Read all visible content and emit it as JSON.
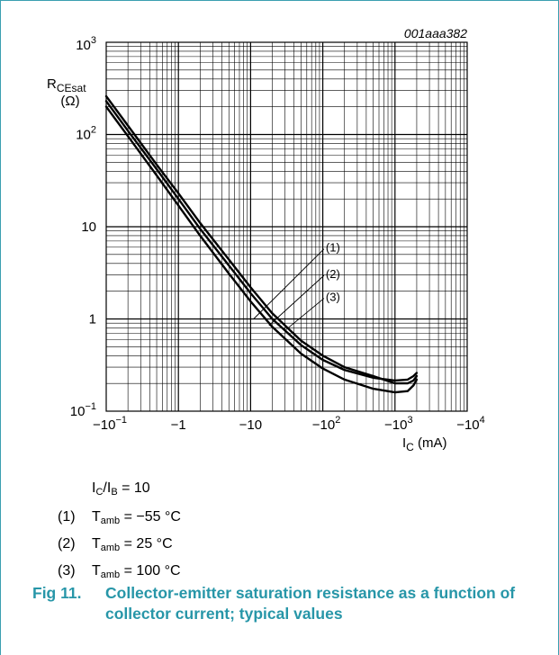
{
  "chart_data": {
    "type": "line",
    "doc_id": "001aaa382",
    "x_scale": "log",
    "y_scale": "log",
    "xlim": [
      0.1,
      10000
    ],
    "ylim": [
      0.1,
      1000
    ],
    "x_ticks": [
      {
        "value": 0.1,
        "base": "−10",
        "exp": "−1"
      },
      {
        "value": 1,
        "base": "−1",
        "exp": ""
      },
      {
        "value": 10,
        "base": "−10",
        "exp": ""
      },
      {
        "value": 100,
        "base": "−10",
        "exp": "2"
      },
      {
        "value": 1000,
        "base": "−10",
        "exp": "3"
      },
      {
        "value": 10000,
        "base": "−10",
        "exp": "4"
      }
    ],
    "y_ticks": [
      {
        "value": 0.1,
        "base": "10",
        "exp": "−1"
      },
      {
        "value": 1,
        "base": "1",
        "exp": ""
      },
      {
        "value": 10,
        "base": "10",
        "exp": ""
      },
      {
        "value": 100,
        "base": "10",
        "exp": "2"
      },
      {
        "value": 1000,
        "base": "10",
        "exp": "3"
      }
    ],
    "xlabel": {
      "main": "I",
      "sub": "C",
      "unit": " (mA)"
    },
    "ylabel": {
      "main": "R",
      "sub": "CEsat",
      "unit": "(Ω)"
    },
    "grid": true,
    "series": [
      {
        "name": "(1)",
        "x": [
          0.1,
          0.2,
          0.5,
          1,
          2,
          5,
          10,
          20,
          50,
          100,
          200,
          500,
          1000,
          1500,
          1800,
          2000
        ],
        "y": [
          230,
          110,
          42,
          20,
          9.5,
          3.8,
          1.9,
          1.0,
          0.52,
          0.36,
          0.28,
          0.23,
          0.215,
          0.22,
          0.24,
          0.26
        ]
      },
      {
        "name": "(2)",
        "x": [
          0.1,
          0.2,
          0.5,
          1,
          2,
          5,
          10,
          20,
          50,
          100,
          200,
          500,
          1000,
          1500,
          1800,
          2000
        ],
        "y": [
          260,
          125,
          47,
          23,
          11,
          4.4,
          2.2,
          1.15,
          0.58,
          0.4,
          0.3,
          0.24,
          0.2,
          0.2,
          0.215,
          0.24
        ]
      },
      {
        "name": "(3)",
        "x": [
          0.1,
          0.2,
          0.5,
          1,
          2,
          5,
          10,
          20,
          50,
          100,
          200,
          500,
          1000,
          1500,
          1800,
          2000
        ],
        "y": [
          200,
          96,
          36,
          17,
          8.0,
          3.1,
          1.55,
          0.82,
          0.42,
          0.29,
          0.22,
          0.175,
          0.16,
          0.165,
          0.19,
          0.22
        ]
      }
    ],
    "labels": [
      {
        "text": "(1)",
        "x": 110,
        "y": 6.0,
        "lx": 11,
        "ly": 1.0
      },
      {
        "text": "(2)",
        "x": 110,
        "y": 3.1,
        "lx": 18,
        "ly": 0.85
      },
      {
        "text": "(3)",
        "x": 110,
        "y": 1.75,
        "lx": 30,
        "ly": 0.75
      }
    ]
  },
  "notes": {
    "ratio": {
      "a": "I",
      "a_sub": "C",
      "slash": "/",
      "b": "I",
      "b_sub": "B",
      "rest": " = 10"
    },
    "items": [
      {
        "num": "(1)",
        "t": "T",
        "sub": "amb",
        "rest": " = −55 °C"
      },
      {
        "num": "(2)",
        "t": "T",
        "sub": "amb",
        "rest": " = 25 °C"
      },
      {
        "num": "(3)",
        "t": "T",
        "sub": "amb",
        "rest": " = 100 °C"
      }
    ]
  },
  "caption": {
    "number": "Fig 11.",
    "text": "Collector-emitter saturation resistance as a function of collector current; typical values"
  }
}
